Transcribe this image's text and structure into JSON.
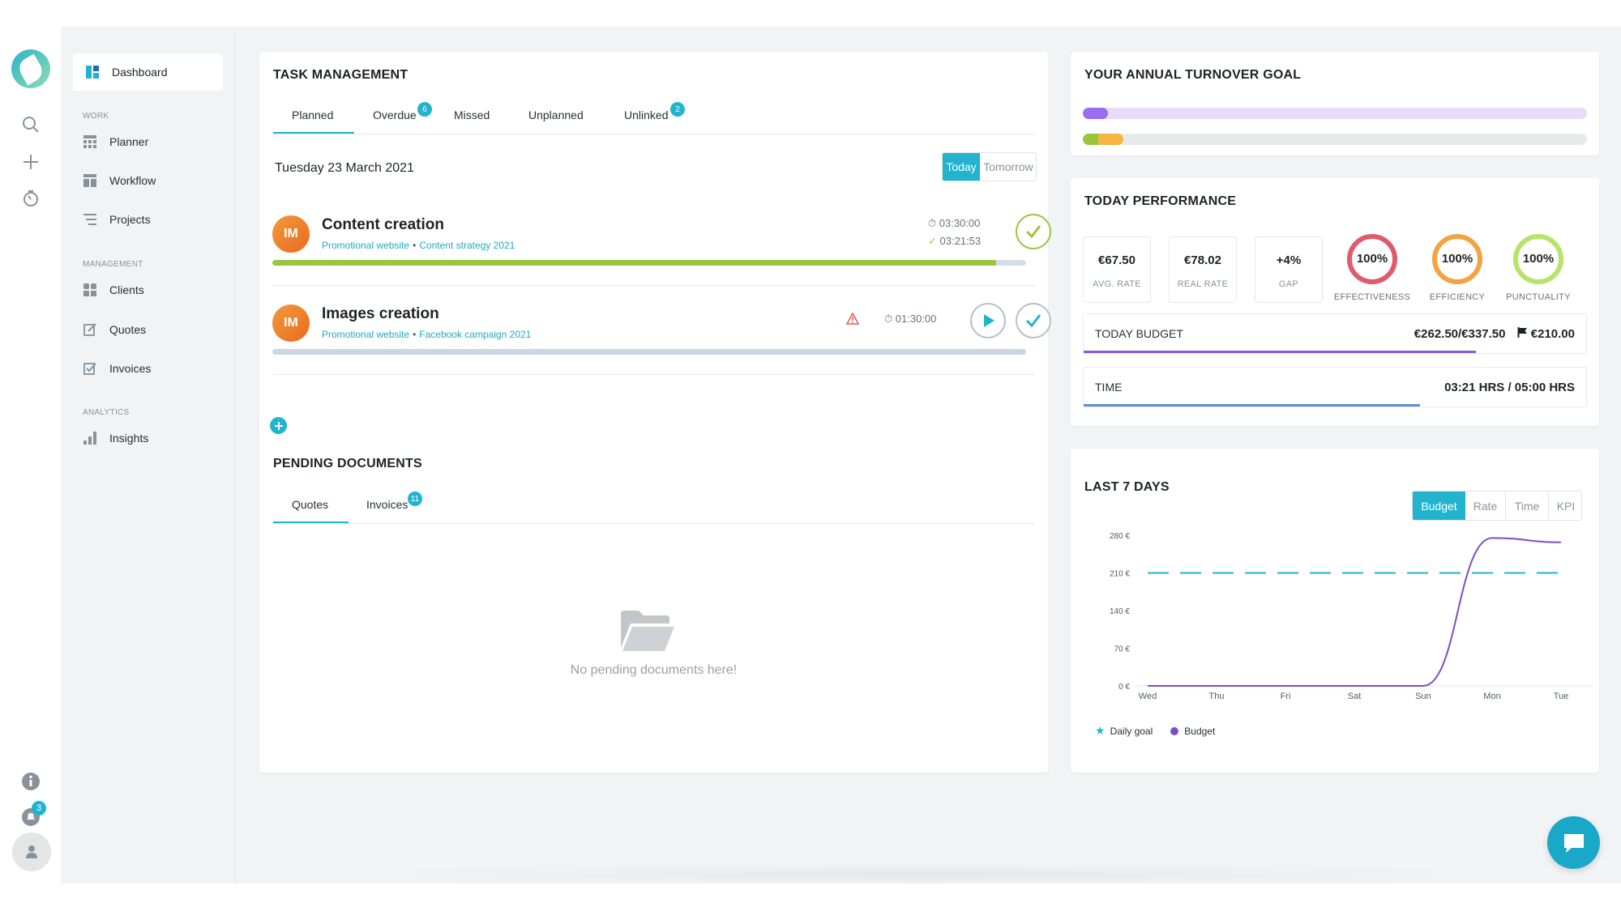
{
  "colors": {
    "accent": "#22b4cf",
    "purple": "#7c4dcc",
    "green": "#9bc53d",
    "orange": "#f4a340",
    "red": "#e05a6b",
    "lime": "#b6e36a"
  },
  "sidebar": {
    "dashboard_label": "Dashboard",
    "sections": {
      "work": "WORK",
      "management": "MANAGEMENT",
      "analytics": "ANALYTICS"
    },
    "items": {
      "planner": "Planner",
      "workflow": "Workflow",
      "projects": "Projects",
      "clients": "Clients",
      "quotes": "Quotes",
      "invoices": "Invoices",
      "insights": "Insights"
    },
    "notification_count": "3"
  },
  "task_management": {
    "title": "TASK MANAGEMENT",
    "tabs": {
      "planned": "Planned",
      "overdue": "Overdue",
      "overdue_badge": "6",
      "missed": "Missed",
      "unplanned": "Unplanned",
      "unlinked": "Unlinked",
      "unlinked_badge": "2"
    },
    "date": "Tuesday 23 March 2021",
    "day_toggle": {
      "today": "Today",
      "tomorrow": "Tomorrow"
    },
    "tasks": [
      {
        "initials": "IM",
        "title": "Content creation",
        "project": "Promotional website",
        "campaign": "Content strategy 2021",
        "planned_time": "03:30:00",
        "tracked_time": "03:21:53",
        "progress": 0.96
      },
      {
        "initials": "IM",
        "title": "Images creation",
        "project": "Promotional website",
        "campaign": "Facebook campaign 2021",
        "planned_time": "01:30:00",
        "progress": 0
      }
    ]
  },
  "pending_documents": {
    "title": "PENDING DOCUMENTS",
    "tabs": {
      "quotes": "Quotes",
      "invoices": "Invoices",
      "invoices_badge": "11"
    },
    "empty_message": "No pending documents here!"
  },
  "turnover_goal": {
    "title": "YOUR ANNUAL TURNOVER GOAL",
    "bar1_progress": 0.05,
    "bar2_progress_green": 0.03,
    "bar2_progress_orange": 0.08
  },
  "today_performance": {
    "title": "TODAY PERFORMANCE",
    "stats": [
      {
        "value": "€67.50",
        "label": "AVG. RATE"
      },
      {
        "value": "€78.02",
        "label": "REAL RATE"
      },
      {
        "value": "+4%",
        "label": "GAP"
      }
    ],
    "rings": [
      {
        "value": "100%",
        "label": "EFFECTIVENESS",
        "color": "#e05a6b"
      },
      {
        "value": "100%",
        "label": "EFFICIENCY",
        "color": "#f4a340"
      },
      {
        "value": "100%",
        "label": "PUNCTUALITY",
        "color": "#b6e36a"
      }
    ],
    "budget": {
      "label": "TODAY BUDGET",
      "value": "€262.50/€337.50",
      "goal": "€210.00",
      "progress": 0.78
    },
    "time": {
      "label": "TIME",
      "value": "03:21 HRS / 05:00 HRS",
      "progress": 0.67
    }
  },
  "last7": {
    "title": "LAST 7 DAYS",
    "tabs": {
      "budget": "Budget",
      "rate": "Rate",
      "time": "Time",
      "kpi": "KPI"
    }
  },
  "chart_data": {
    "type": "line",
    "categories": [
      "Wed",
      "Thu",
      "Fri",
      "Sat",
      "Sun",
      "Mon",
      "Tue"
    ],
    "y_ticks": [
      "280 €",
      "210 €",
      "140 €",
      "70 €",
      "0 €"
    ],
    "ylim": [
      0,
      280
    ],
    "series": [
      {
        "name": "Daily goal",
        "values": [
          210,
          210,
          210,
          210,
          210,
          210,
          210
        ],
        "color": "#22b4cf",
        "style": "dashed"
      },
      {
        "name": "Budget",
        "values": [
          0,
          0,
          0,
          0,
          0,
          275,
          267
        ],
        "color": "#7c4dcc",
        "style": "solid"
      }
    ],
    "legend": [
      "Daily goal",
      "Budget"
    ],
    "legend_position": "bottom-left",
    "grid": false
  }
}
